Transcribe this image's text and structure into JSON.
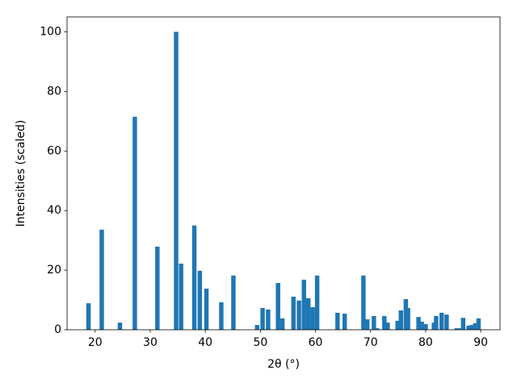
{
  "chart_data": {
    "type": "bar",
    "xlabel": "2θ (°)",
    "ylabel": "Intensities (scaled)",
    "x": [
      18.8,
      21.2,
      24.5,
      27.2,
      31.3,
      34.7,
      35.6,
      38.0,
      39.0,
      40.2,
      42.9,
      45.1,
      49.4,
      50.4,
      51.4,
      53.2,
      54.0,
      56.0,
      57.0,
      57.9,
      58.7,
      59.5,
      60.3,
      64.0,
      65.3,
      68.7,
      69.4,
      70.6,
      71.2,
      72.5,
      73.1,
      74.9,
      75.5,
      76.4,
      76.8,
      78.7,
      79.3,
      80.0,
      81.5,
      81.9,
      82.9,
      83.8,
      85.6,
      86.0,
      86.8,
      87.8,
      88.4,
      89.0,
      89.6
    ],
    "values": [
      8.9,
      33.6,
      2.4,
      71.5,
      27.9,
      100,
      22.2,
      35,
      19.8,
      13.8,
      9.2,
      18.2,
      1.6,
      7.3,
      6.8,
      15.7,
      3.8,
      11.1,
      9.8,
      16.8,
      10.6,
      7.6,
      18.2,
      5.7,
      5.4,
      18.2,
      3.5,
      4.6,
      0.5,
      4.6,
      2.4,
      3,
      6.5,
      10.3,
      7.3,
      4.3,
      2.7,
      1.9,
      2.4,
      4.6,
      5.7,
      5.1,
      0.5,
      0.5,
      4,
      1.4,
      1.6,
      2.2,
      3.8
    ],
    "color": "#1f77b4",
    "xlim": [
      14.9,
      93.5
    ],
    "xticks": [
      20,
      30,
      40,
      50,
      60,
      70,
      80,
      90
    ],
    "ylim": [
      0,
      105
    ],
    "yticks": [
      0,
      20,
      40,
      60,
      80,
      100
    ]
  }
}
